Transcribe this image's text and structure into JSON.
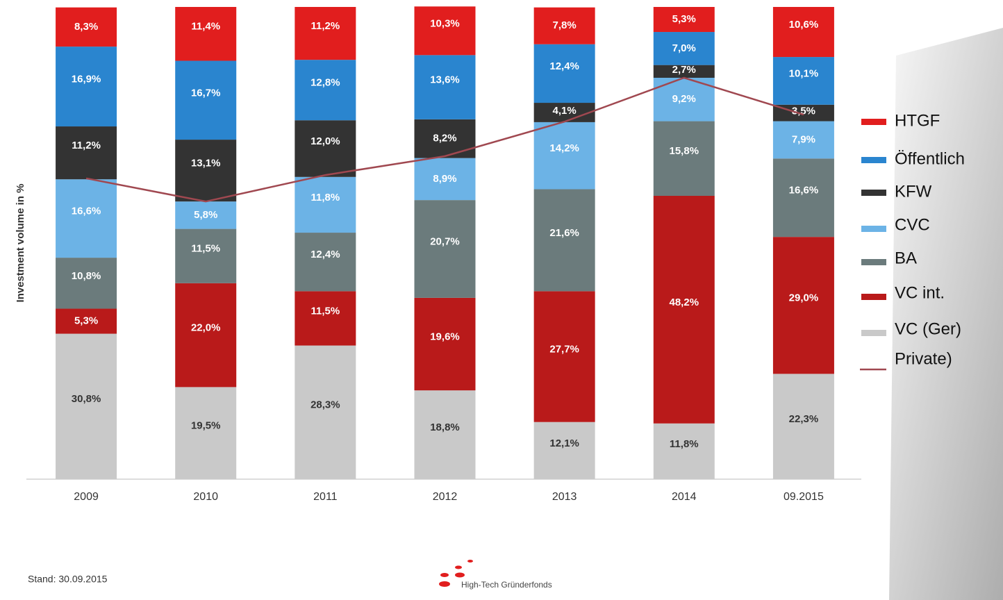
{
  "chart_data": {
    "type": "bar",
    "stacked": true,
    "ylabel": "Investment volume in %",
    "categories": [
      "2009",
      "2010",
      "2011",
      "2012",
      "2013",
      "2014",
      "09.2015"
    ],
    "ylim": [
      0,
      100
    ],
    "series": [
      {
        "name": "VC (Ger)",
        "color": "#c9c9c9",
        "values": [
          30.8,
          19.5,
          28.3,
          18.8,
          12.1,
          11.8,
          22.3
        ],
        "value_labels": [
          "30,8%",
          "19,5%",
          "28,3%",
          "18,8%",
          "12,1%",
          "11,8%",
          "22,3%"
        ]
      },
      {
        "name": "VC int.",
        "color": "#b91a1a",
        "values": [
          5.3,
          22.0,
          11.5,
          19.6,
          27.7,
          48.2,
          29.0
        ],
        "value_labels": [
          "5,3%",
          "22,0%",
          "11,5%",
          "19,6%",
          "27,7%",
          "48,2%",
          "29,0%"
        ]
      },
      {
        "name": "BA",
        "color": "#6b7b7c",
        "values": [
          10.8,
          11.5,
          12.4,
          20.7,
          21.6,
          15.8,
          16.6
        ],
        "value_labels": [
          "10,8%",
          "11,5%",
          "12,4%",
          "20,7%",
          "21,6%",
          "15,8%",
          "16,6%"
        ]
      },
      {
        "name": "CVC",
        "color": "#6cb3e6",
        "values": [
          16.6,
          5.8,
          11.8,
          8.9,
          14.2,
          9.2,
          7.9
        ],
        "value_labels": [
          "16,6%",
          "5,8%",
          "11,8%",
          "8,9%",
          "14,2%",
          "9,2%",
          "7,9%"
        ]
      },
      {
        "name": "KFW",
        "color": "#333333",
        "values": [
          11.2,
          13.1,
          12.0,
          8.2,
          4.1,
          2.7,
          3.5
        ],
        "value_labels": [
          "11,2%",
          "13,1%",
          "12,0%",
          "8,2%",
          "4,1%",
          "2,7%",
          "3,5%"
        ]
      },
      {
        "name": "Öffentlich",
        "color": "#2a85cf",
        "values": [
          16.9,
          16.7,
          12.8,
          13.6,
          12.4,
          7.0,
          10.1
        ],
        "value_labels": [
          "16,9%",
          "16,7%",
          "12,8%",
          "13,6%",
          "12,4%",
          "7,0%",
          "10,1%"
        ]
      },
      {
        "name": "HTGF",
        "color": "#e11e1e",
        "values": [
          8.3,
          11.4,
          11.2,
          10.3,
          7.8,
          5.3,
          10.6
        ],
        "value_labels": [
          "8,3%",
          "11,4%",
          "11,2%",
          "10,3%",
          "7,8%",
          "5,3%",
          "10,6%"
        ]
      },
      {
        "name": "Private)",
        "type": "line",
        "color": "#a04850",
        "values": [
          63.7,
          58.8,
          64.4,
          68.4,
          75.7,
          85.0,
          77.2
        ]
      }
    ],
    "annotations": [
      "Stand: 30.09.2015",
      "High-Tech Gründerfonds"
    ]
  }
}
